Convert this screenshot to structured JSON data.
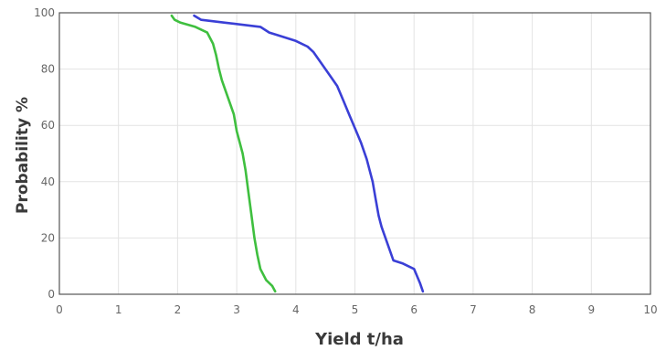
{
  "chart_data": {
    "type": "line",
    "title": "",
    "xlabel": "Yield t/ha",
    "ylabel": "Probability %",
    "xlim": [
      0,
      10
    ],
    "ylim": [
      0,
      100
    ],
    "x_ticks": [
      0,
      1,
      2,
      3,
      4,
      5,
      6,
      7,
      8,
      9,
      10
    ],
    "y_ticks": [
      0,
      20,
      40,
      60,
      80,
      100
    ],
    "grid": true,
    "legend": "none",
    "series": [
      {
        "color": "#3fbf3f",
        "points": [
          [
            1.9,
            99
          ],
          [
            1.95,
            97.5
          ],
          [
            2.05,
            96.5
          ],
          [
            2.3,
            95
          ],
          [
            2.5,
            93
          ],
          [
            2.6,
            89
          ],
          [
            2.65,
            85
          ],
          [
            2.7,
            80
          ],
          [
            2.75,
            76
          ],
          [
            2.85,
            70
          ],
          [
            2.95,
            64
          ],
          [
            3.0,
            58
          ],
          [
            3.1,
            50
          ],
          [
            3.15,
            44
          ],
          [
            3.2,
            36
          ],
          [
            3.25,
            28
          ],
          [
            3.3,
            20
          ],
          [
            3.35,
            14
          ],
          [
            3.4,
            9
          ],
          [
            3.5,
            5
          ],
          [
            3.6,
            3
          ],
          [
            3.65,
            1
          ]
        ]
      },
      {
        "color": "#3a3fd6",
        "points": [
          [
            2.28,
            99
          ],
          [
            2.4,
            97.5
          ],
          [
            2.8,
            96.5
          ],
          [
            3.4,
            95
          ],
          [
            3.55,
            93
          ],
          [
            3.7,
            92
          ],
          [
            4.0,
            90
          ],
          [
            4.2,
            88
          ],
          [
            4.3,
            86
          ],
          [
            4.4,
            83
          ],
          [
            4.5,
            80
          ],
          [
            4.6,
            77
          ],
          [
            4.7,
            74
          ],
          [
            4.8,
            69
          ],
          [
            4.9,
            64
          ],
          [
            5.0,
            59
          ],
          [
            5.1,
            54
          ],
          [
            5.2,
            48
          ],
          [
            5.3,
            40
          ],
          [
            5.35,
            34
          ],
          [
            5.4,
            28
          ],
          [
            5.45,
            24
          ],
          [
            5.55,
            18
          ],
          [
            5.65,
            12
          ],
          [
            5.8,
            11
          ],
          [
            6.0,
            9
          ],
          [
            6.1,
            4
          ],
          [
            6.15,
            1
          ]
        ]
      }
    ]
  }
}
